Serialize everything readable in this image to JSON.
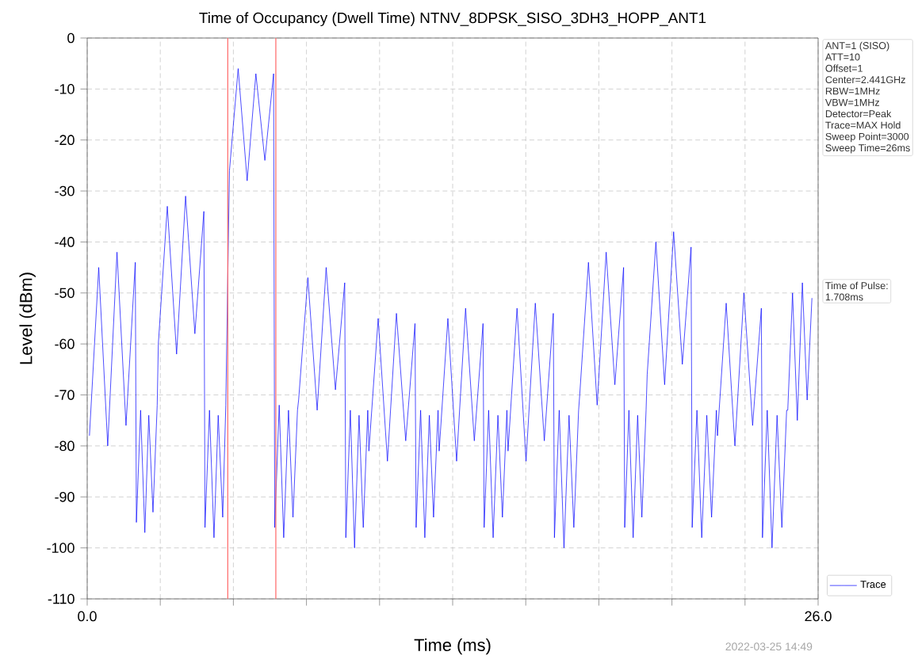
{
  "chart_data": {
    "type": "line",
    "title": "Time of Occupancy (Dwell Time) NTNV_8DPSK_SISO_3DH3_HOPP_ANT1",
    "xlabel": "Time (ms)",
    "ylabel": "Level (dBm)",
    "x": [
      0.08,
      0.41,
      0.73,
      1.06,
      1.38,
      1.71,
      1.75,
      1.9,
      2.05,
      2.19,
      2.34,
      2.49,
      2.53,
      2.85,
      3.18,
      3.5,
      3.83,
      4.15,
      4.19,
      4.35,
      4.51,
      4.66,
      4.82,
      4.93,
      5.06,
      5.37,
      5.69,
      6.0,
      6.32,
      6.63,
      6.67,
      6.83,
      6.99,
      7.16,
      7.32,
      7.48,
      7.52,
      7.85,
      8.18,
      8.5,
      8.83,
      9.16,
      9.2,
      9.36,
      9.51,
      9.67,
      9.82,
      9.98,
      10.02,
      10.35,
      10.68,
      11.0,
      11.33,
      11.66,
      11.7,
      11.86,
      12.01,
      12.17,
      12.32,
      12.48,
      12.52,
      12.83,
      13.14,
      13.46,
      13.77,
      14.08,
      14.12,
      14.28,
      14.44,
      14.61,
      14.77,
      14.93,
      14.97,
      15.29,
      15.61,
      15.94,
      16.26,
      16.58,
      16.62,
      16.79,
      16.96,
      17.14,
      17.31,
      17.48,
      17.52,
      17.83,
      18.14,
      18.46,
      18.77,
      19.08,
      19.12,
      19.27,
      19.42,
      19.58,
      19.73,
      19.88,
      19.92,
      20.23,
      20.54,
      20.86,
      21.17,
      21.48,
      21.52,
      21.69,
      21.86,
      22.04,
      22.21,
      22.38,
      22.42,
      22.73,
      23.04,
      23.36,
      23.67,
      23.98,
      24.02,
      24.19,
      24.36,
      24.54,
      24.71,
      24.88,
      24.92,
      25.09,
      25.26,
      25.44,
      25.61,
      25.78
    ],
    "series": [
      {
        "name": "Trace",
        "color": "#0000ff",
        "values": [
          -78,
          -45,
          -80,
          -42,
          -76,
          -44,
          -95,
          -73,
          -97,
          -74,
          -93,
          -72,
          -60,
          -33,
          -62,
          -31,
          -58,
          -34,
          -96,
          -73,
          -98,
          -74,
          -94,
          -72,
          -26,
          -6,
          -28,
          -7,
          -24,
          -7,
          -96,
          -72,
          -98,
          -73,
          -94,
          -73,
          -71,
          -47,
          -73,
          -45,
          -69,
          -48,
          -98,
          -73,
          -100,
          -74,
          -96,
          -73,
          -81,
          -55,
          -83,
          -54,
          -79,
          -56,
          -96,
          -73,
          -98,
          -74,
          -94,
          -73,
          -81,
          -55,
          -83,
          -53,
          -79,
          -56,
          -96,
          -73,
          -98,
          -74,
          -94,
          -73,
          -81,
          -53,
          -83,
          -52,
          -79,
          -54,
          -98,
          -73,
          -100,
          -74,
          -96,
          -73,
          -70,
          -44,
          -72,
          -42,
          -68,
          -45,
          -96,
          -73,
          -98,
          -74,
          -94,
          -73,
          -66,
          -40,
          -68,
          -38,
          -64,
          -41,
          -96,
          -73,
          -98,
          -74,
          -94,
          -73,
          -78,
          -52,
          -80,
          -50,
          -76,
          -53,
          -98,
          -73,
          -100,
          -74,
          -96,
          -73,
          -73,
          -50,
          -75,
          -48,
          -71,
          -51
        ]
      }
    ],
    "xlim": [
      0,
      26
    ],
    "ylim": [
      -110,
      0
    ],
    "xticks": [
      {
        "value": 0,
        "label": "0.0"
      },
      {
        "value": 2.6,
        "label": null
      },
      {
        "value": 5.2,
        "label": null
      },
      {
        "value": 7.8,
        "label": null
      },
      {
        "value": 10.4,
        "label": null
      },
      {
        "value": 13,
        "label": null
      },
      {
        "value": 15.6,
        "label": null
      },
      {
        "value": 18.2,
        "label": null
      },
      {
        "value": 20.8,
        "label": null
      },
      {
        "value": 23.4,
        "label": null
      },
      {
        "value": 26,
        "label": "26.0"
      }
    ],
    "yticks": [
      0,
      -10,
      -20,
      -30,
      -40,
      -50,
      -60,
      -70,
      -80,
      -90,
      -100,
      -110
    ],
    "ref_lines": [
      {
        "axis": "x",
        "value": 5.0,
        "color": "#ff6666"
      },
      {
        "axis": "x",
        "value": 6.71,
        "color": "#ff6666"
      }
    ],
    "grid": true,
    "legend": "bottom right",
    "marker": "none",
    "line_style": "solid",
    "annotations": [
      "ANT=1 (SISO)",
      "ATT=10",
      "Offset=1",
      "Center=2.441GHz",
      "RBW=1MHz",
      "VBW=1MHz",
      "Detector=Peak",
      "Trace=MAX Hold",
      "Sweep Point=3000",
      "Sweep Time=26ms",
      "Time of Pulse:",
      "1.708ms",
      "2022-03-25 14:49"
    ]
  }
}
